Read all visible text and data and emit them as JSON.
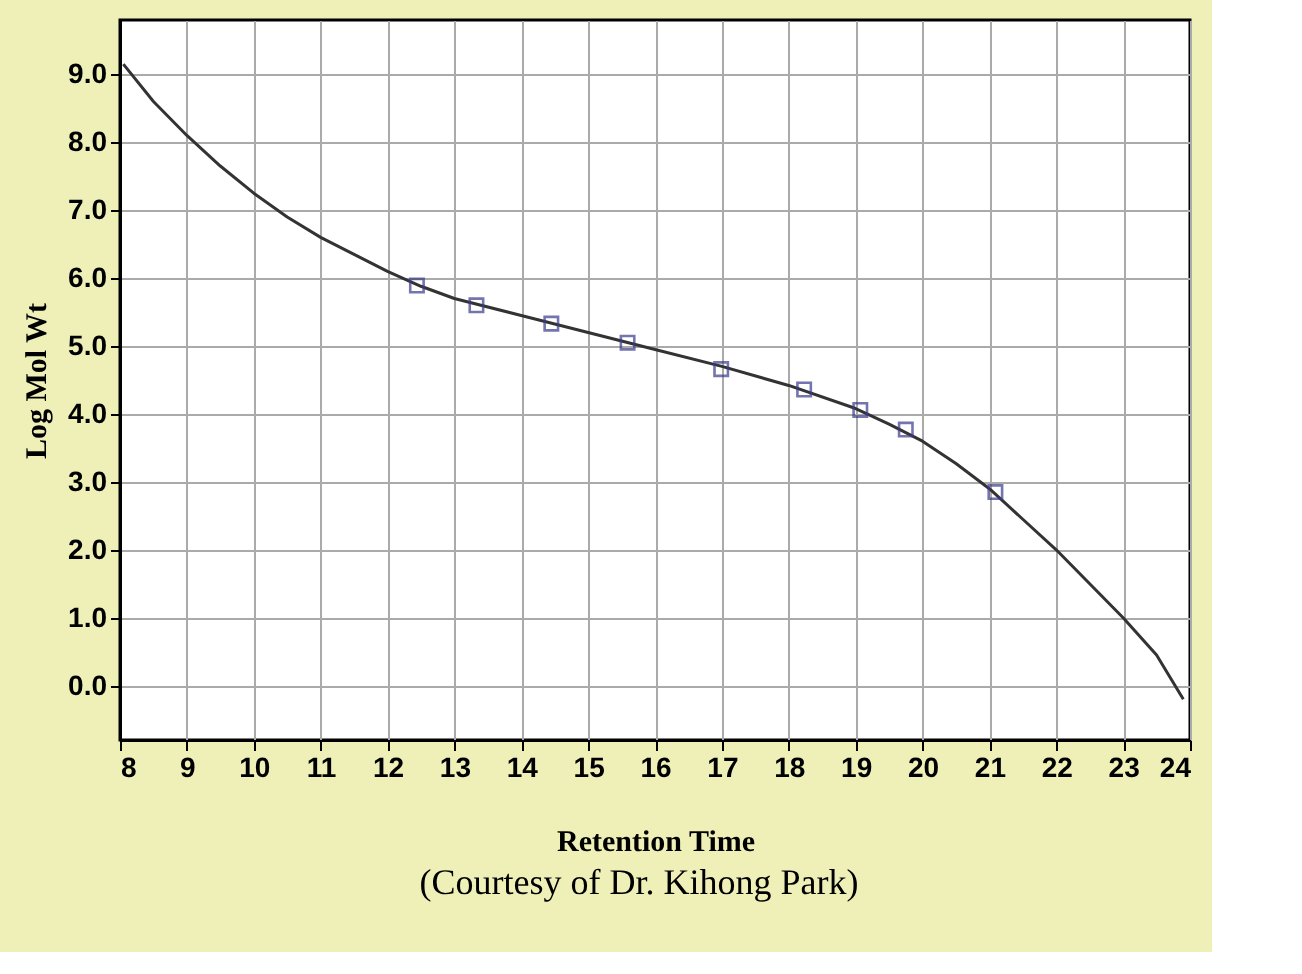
{
  "chart_data": {
    "type": "scatter",
    "xlabel": "Retention Time",
    "ylabel": "Log Mol Wt",
    "annotations": [
      "(Courtesy of Dr. Kihong Park)"
    ],
    "xlim": [
      8,
      24
    ],
    "ylim": [
      -0.8,
      9.8
    ],
    "xticks": [
      8,
      9,
      10,
      11,
      12,
      13,
      14,
      15,
      16,
      17,
      18,
      19,
      20,
      21,
      22,
      23,
      24
    ],
    "yticks": [
      {
        "value": 0,
        "label": "0.0"
      },
      {
        "value": 1,
        "label": "1.0"
      },
      {
        "value": 2,
        "label": "2.0"
      },
      {
        "value": 3,
        "label": "3.0"
      },
      {
        "value": 4,
        "label": "4.0"
      },
      {
        "value": 5,
        "label": "5.0"
      },
      {
        "value": 6,
        "label": "6.0"
      },
      {
        "value": 7,
        "label": "7.0"
      },
      {
        "value": 8,
        "label": "8.0"
      },
      {
        "value": 9,
        "label": "9.0"
      }
    ],
    "grid": true,
    "series": [
      {
        "type": "line",
        "color": "#333333",
        "marker": "none",
        "x": [
          8.05,
          8.5,
          9,
          9.5,
          10,
          10.5,
          11,
          11.5,
          12,
          12.5,
          13,
          14,
          15,
          16,
          17,
          18,
          19,
          19.5,
          20,
          20.5,
          21,
          21.5,
          22,
          22.5,
          23,
          23.5,
          23.9
        ],
        "values": [
          9.15,
          8.6,
          8.1,
          7.65,
          7.25,
          6.9,
          6.6,
          6.35,
          6.1,
          5.88,
          5.7,
          5.45,
          5.2,
          4.95,
          4.7,
          4.42,
          4.08,
          3.85,
          3.6,
          3.27,
          2.9,
          2.45,
          2.0,
          1.5,
          1.0,
          0.45,
          -0.2
        ]
      },
      {
        "type": "scatter",
        "color": "#3a3a8c",
        "marker": "square",
        "x": [
          12.44,
          13.33,
          14.45,
          15.59,
          16.99,
          18.23,
          19.07,
          19.75,
          21.09
        ],
        "values": [
          5.89,
          5.6,
          5.33,
          5.05,
          4.66,
          4.36,
          4.06,
          3.77,
          2.85
        ]
      }
    ]
  }
}
